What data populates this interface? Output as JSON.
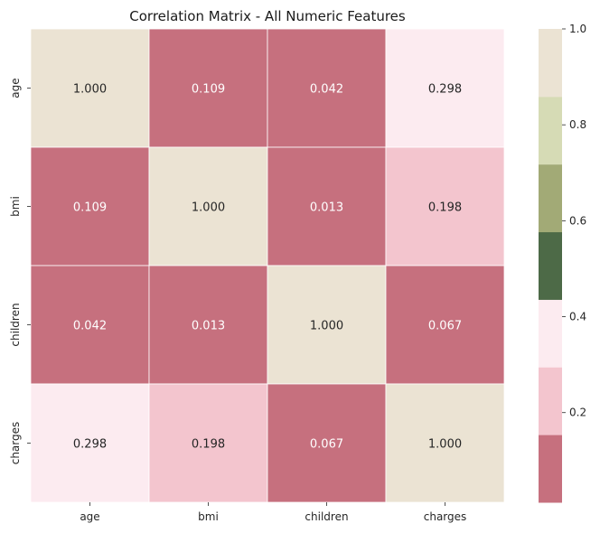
{
  "chart_data": {
    "type": "heatmap",
    "title": "Correlation Matrix - All Numeric Features",
    "rows": [
      "age",
      "bmi",
      "children",
      "charges"
    ],
    "columns": [
      "age",
      "bmi",
      "children",
      "charges"
    ],
    "values": [
      [
        1.0,
        0.109,
        0.042,
        0.298
      ],
      [
        0.109,
        1.0,
        0.013,
        0.198
      ],
      [
        0.042,
        0.013,
        1.0,
        0.067
      ],
      [
        0.298,
        0.198,
        0.067,
        1.0
      ]
    ],
    "value_labels": [
      [
        "1.000",
        "0.109",
        "0.042",
        "0.298"
      ],
      [
        "0.109",
        "1.000",
        "0.013",
        "0.198"
      ],
      [
        "0.042",
        "0.013",
        "1.000",
        "0.067"
      ],
      [
        "0.298",
        "0.198",
        "0.067",
        "1.000"
      ]
    ],
    "colorbar": {
      "range": [
        0.013,
        1.0
      ],
      "ticks": [
        0.2,
        0.4,
        0.6,
        0.8,
        1.0
      ],
      "tick_labels": [
        "0.2",
        "0.4",
        "0.6",
        "0.8",
        "1.0"
      ],
      "colors": [
        "#c6707e",
        "#f3c5ce",
        "#fcebf0",
        "#4d6a47",
        "#a2aa76",
        "#d6dbb5",
        "#ebe3d3"
      ]
    },
    "annotation_colors": {
      "light": "#ffffff",
      "dark": "#262626"
    }
  }
}
